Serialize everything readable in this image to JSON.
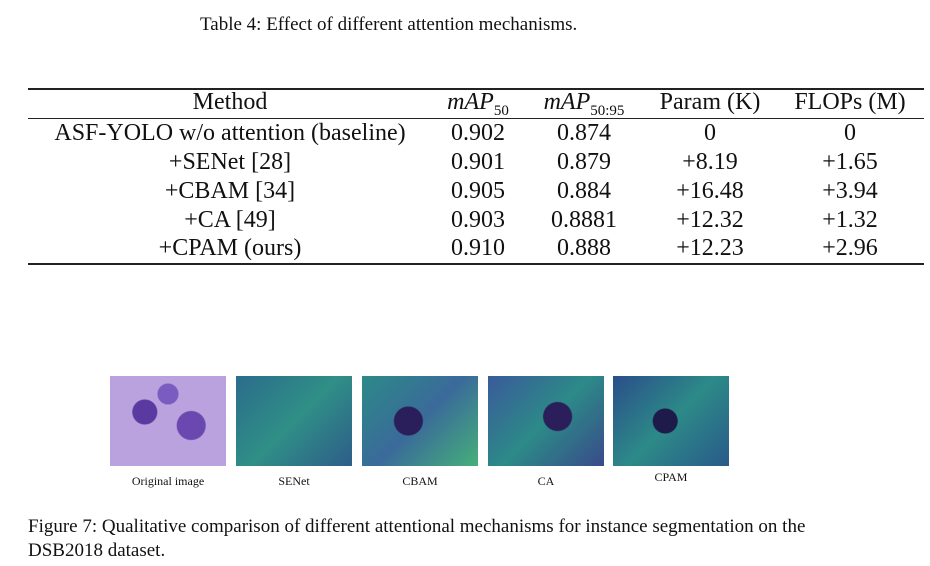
{
  "table": {
    "caption": "Table 4: Effect of different attention mechanisms.",
    "header": [
      {
        "text": "Method"
      },
      {
        "main": "mAP",
        "sub": "50"
      },
      {
        "main": "mAP",
        "sub": "50:95"
      },
      {
        "text": "Param (K)"
      },
      {
        "text": "FLOPs (M)"
      }
    ],
    "rows": [
      [
        "ASF-YOLO w/o attention (baseline)",
        "0.902",
        "0.874",
        "0",
        "0"
      ],
      [
        "+SENet [28]",
        "0.901",
        "0.879",
        "+8.19",
        "+1.65"
      ],
      [
        "+CBAM [34]",
        "0.905",
        "0.884",
        "+16.48",
        "+3.94"
      ],
      [
        "+CA [49]",
        "0.903",
        "0.8881",
        "+12.32",
        "+1.32"
      ],
      [
        "+CPAM (ours)",
        "0.910",
        "0.888",
        "+12.23",
        "+2.96"
      ]
    ]
  },
  "figure": {
    "panels": [
      "Original image",
      "SENet",
      "CBAM",
      "CA",
      "CPAM"
    ],
    "caption": "Figure 7: Qualitative comparison of different attentional mechanisms for instance segmentation on the DSB2018 dataset."
  }
}
